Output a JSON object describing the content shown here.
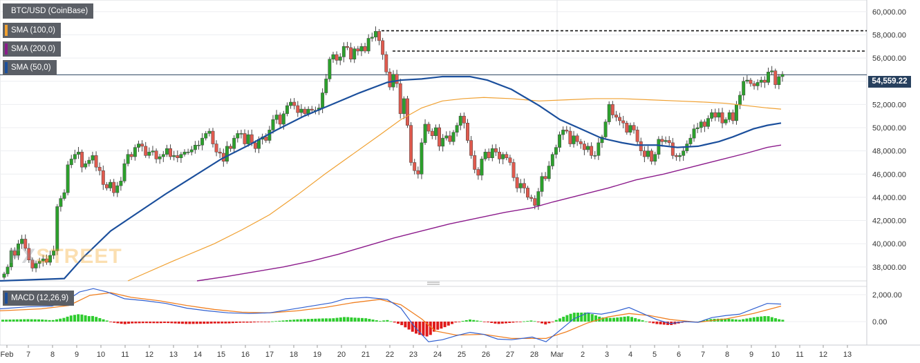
{
  "legend": [
    {
      "label": "BTC/USD (CoinBase)",
      "color": "#5b5f66"
    },
    {
      "label": "SMA (100,0)",
      "color": "#f0a030"
    },
    {
      "label": "SMA (200,0)",
      "color": "#8b1a8b"
    },
    {
      "label": "SMA (50,0)",
      "color": "#1b4f9c"
    }
  ],
  "macd_legend": {
    "label": "MACD (12,26,9)",
    "color": "#1b4f9c"
  },
  "current_price_label": "54,559.22",
  "watermark": {
    "part1": "FX",
    "part2": "STREET"
  },
  "colors": {
    "up": "#2ca02c",
    "down": "#e05a4e",
    "sma50": "#1b4f9c",
    "sma100": "#f0a030",
    "sma200": "#8b1a8b",
    "macd": "#2f5fd0",
    "signal": "#f07f20",
    "hist_pos": "#2ecc2e",
    "hist_neg": "#e01b1b",
    "price_line": "#27405e"
  },
  "chart_data": [
    {
      "type": "candlestick",
      "title": "BTC/USD (CoinBase)",
      "interval": "4h",
      "ylim": [
        36800,
        61000
      ],
      "y_ticks": [
        "38,000.00",
        "40,000.00",
        "42,000.00",
        "44,000.00",
        "46,000.00",
        "48,000.00",
        "50,000.00",
        "52,000.00",
        "54,000.00",
        "56,000.00",
        "58,000.00",
        "60,000.00"
      ],
      "x_ticks": [
        "Feb",
        "7",
        "8",
        "9",
        "10",
        "11",
        "12",
        "13",
        "14",
        "15",
        "16",
        "17",
        "18",
        "19",
        "20",
        "21",
        "22",
        "23",
        "24",
        "25",
        "26",
        "27",
        "28",
        "Mar",
        "2",
        "3",
        "4",
        "5",
        "6",
        "7",
        "8",
        "9",
        "10",
        "11",
        "12",
        "13"
      ],
      "current_price": 54559.22,
      "resistance_levels": [
        58350,
        56600
      ],
      "candles_close": [
        37400,
        38000,
        39400,
        39000,
        40000,
        40400,
        39600,
        38600,
        37900,
        38300,
        38500,
        38700,
        38400,
        39000,
        39400,
        43200,
        43900,
        44400,
        46800,
        47300,
        47700,
        47900,
        46600,
        46900,
        47200,
        47600,
        46600,
        46300,
        45100,
        44800,
        45300,
        44400,
        45000,
        45400,
        46900,
        47700,
        47500,
        48300,
        48600,
        48400,
        47600,
        47900,
        48000,
        47300,
        47500,
        47700,
        48200,
        47500,
        47600,
        47400,
        47700,
        47900,
        47900,
        48100,
        48500,
        48500,
        49100,
        49500,
        49700,
        48600,
        47900,
        47800,
        47100,
        48400,
        48200,
        49100,
        49500,
        49500,
        48600,
        49400,
        48700,
        48200,
        49000,
        49200,
        48900,
        49800,
        50700,
        51100,
        50300,
        51200,
        51900,
        52200,
        51900,
        51300,
        51600,
        51200,
        51600,
        51500,
        51500,
        51700,
        53000,
        54200,
        55900,
        56300,
        55800,
        56100,
        57000,
        56900,
        55900,
        56800,
        56600,
        57000,
        56600,
        57700,
        57800,
        58300,
        57500,
        56300,
        54800,
        53500,
        54600,
        53800,
        51200,
        52500,
        50200,
        47000,
        46300,
        46000,
        48700,
        50300,
        49700,
        49300,
        50000,
        48400,
        49100,
        49300,
        48800,
        49600,
        50200,
        51000,
        50400,
        48900,
        47600,
        46400,
        45900,
        47300,
        47900,
        47400,
        48200,
        47900,
        47300,
        47700,
        47400,
        47000,
        45700,
        44800,
        45200,
        44800,
        44000,
        43900,
        43300,
        44500,
        45800,
        45600,
        46700,
        47700,
        48300,
        49400,
        49800,
        49700,
        48600,
        49300,
        48800,
        48600,
        48100,
        48400,
        47600,
        47600,
        48700,
        49200,
        50500,
        52000,
        51100,
        50900,
        50600,
        50400,
        49600,
        50200,
        49800,
        48800,
        48000,
        47500,
        48000,
        47100,
        47700,
        49000,
        48800,
        48900,
        48700,
        47600,
        47500,
        47600,
        48000,
        48600,
        49100,
        49900,
        50000,
        50500,
        50100,
        50800,
        51300,
        50900,
        51300,
        50400,
        50700,
        51300,
        50600,
        52000,
        52800,
        54000,
        54100,
        53800,
        53600,
        53900,
        54100,
        53900,
        54800,
        54900,
        53700,
        54400,
        54600
      ],
      "sma50": [
        [
          0,
          36800
        ],
        [
          93,
          37000
        ],
        [
          120,
          38800
        ],
        [
          160,
          41100
        ],
        [
          200,
          42700
        ],
        [
          240,
          44300
        ],
        [
          280,
          45800
        ],
        [
          320,
          47300
        ],
        [
          360,
          48500
        ],
        [
          400,
          49800
        ],
        [
          440,
          51000
        ],
        [
          480,
          52000
        ],
        [
          520,
          53000
        ],
        [
          560,
          53900
        ],
        [
          580,
          54100
        ],
        [
          610,
          54200
        ],
        [
          640,
          54400
        ],
        [
          680,
          54400
        ],
        [
          705,
          54100
        ],
        [
          740,
          53300
        ],
        [
          780,
          51900
        ],
        [
          810,
          50700
        ],
        [
          840,
          49900
        ],
        [
          870,
          49100
        ],
        [
          900,
          48700
        ],
        [
          920,
          48500
        ],
        [
          950,
          48500
        ],
        [
          980,
          48300
        ],
        [
          1010,
          48400
        ],
        [
          1040,
          48800
        ],
        [
          1060,
          49200
        ],
        [
          1090,
          49900
        ],
        [
          1110,
          50200
        ],
        [
          1130,
          50400
        ]
      ],
      "sma100": [
        [
          185,
          36800
        ],
        [
          250,
          38500
        ],
        [
          310,
          40000
        ],
        [
          350,
          41200
        ],
        [
          390,
          42500
        ],
        [
          430,
          44200
        ],
        [
          470,
          46000
        ],
        [
          510,
          47700
        ],
        [
          550,
          49400
        ],
        [
          580,
          50700
        ],
        [
          610,
          51700
        ],
        [
          640,
          52300
        ],
        [
          670,
          52500
        ],
        [
          700,
          52600
        ],
        [
          740,
          52500
        ],
        [
          780,
          52300
        ],
        [
          820,
          52400
        ],
        [
          860,
          52500
        ],
        [
          900,
          52500
        ],
        [
          940,
          52400
        ],
        [
          980,
          52300
        ],
        [
          1020,
          52200
        ],
        [
          1050,
          52100
        ],
        [
          1080,
          51900
        ],
        [
          1110,
          51700
        ],
        [
          1130,
          51600
        ]
      ],
      "sma200": [
        [
          285,
          36800
        ],
        [
          330,
          37200
        ],
        [
          370,
          37600
        ],
        [
          410,
          38000
        ],
        [
          450,
          38500
        ],
        [
          490,
          39100
        ],
        [
          530,
          39800
        ],
        [
          570,
          40500
        ],
        [
          610,
          41100
        ],
        [
          650,
          41700
        ],
        [
          690,
          42200
        ],
        [
          730,
          42700
        ],
        [
          770,
          43100
        ],
        [
          800,
          43600
        ],
        [
          840,
          44200
        ],
        [
          880,
          44800
        ],
        [
          920,
          45500
        ],
        [
          960,
          46000
        ],
        [
          1000,
          46600
        ],
        [
          1040,
          47200
        ],
        [
          1080,
          47800
        ],
        [
          1110,
          48300
        ],
        [
          1130,
          48500
        ]
      ]
    },
    {
      "type": "line+bar",
      "title": "MACD (12,26,9)",
      "ylim": [
        -1700,
        2600
      ],
      "y_ticks": [
        "2,000.00",
        "0.00"
      ],
      "macd": [
        [
          0,
          950
        ],
        [
          40,
          1100
        ],
        [
          75,
          1150
        ],
        [
          95,
          1500
        ],
        [
          115,
          2200
        ],
        [
          135,
          2450
        ],
        [
          155,
          2200
        ],
        [
          180,
          1700
        ],
        [
          210,
          1550
        ],
        [
          240,
          1350
        ],
        [
          270,
          1000
        ],
        [
          300,
          800
        ],
        [
          330,
          650
        ],
        [
          360,
          600
        ],
        [
          390,
          650
        ],
        [
          420,
          900
        ],
        [
          450,
          1150
        ],
        [
          480,
          1400
        ],
        [
          500,
          1700
        ],
        [
          530,
          1800
        ],
        [
          560,
          1650
        ],
        [
          580,
          1000
        ],
        [
          600,
          -400
        ],
        [
          620,
          -1500
        ],
        [
          640,
          -1350
        ],
        [
          660,
          -1050
        ],
        [
          680,
          -800
        ],
        [
          700,
          -950
        ],
        [
          720,
          -1300
        ],
        [
          740,
          -1350
        ],
        [
          770,
          -1150
        ],
        [
          790,
          -1500
        ],
        [
          810,
          -650
        ],
        [
          830,
          200
        ],
        [
          850,
          650
        ],
        [
          870,
          550
        ],
        [
          890,
          750
        ],
        [
          910,
          1050
        ],
        [
          930,
          600
        ],
        [
          950,
          150
        ],
        [
          970,
          -150
        ],
        [
          990,
          0
        ],
        [
          1010,
          -50
        ],
        [
          1030,
          300
        ],
        [
          1050,
          450
        ],
        [
          1070,
          550
        ],
        [
          1090,
          950
        ],
        [
          1110,
          1350
        ],
        [
          1130,
          1300
        ]
      ],
      "signal": [
        [
          0,
          800
        ],
        [
          60,
          950
        ],
        [
          100,
          1200
        ],
        [
          130,
          1950
        ],
        [
          160,
          2150
        ],
        [
          190,
          1800
        ],
        [
          230,
          1550
        ],
        [
          270,
          1200
        ],
        [
          310,
          900
        ],
        [
          350,
          700
        ],
        [
          390,
          650
        ],
        [
          430,
          800
        ],
        [
          470,
          1050
        ],
        [
          510,
          1400
        ],
        [
          550,
          1650
        ],
        [
          580,
          1250
        ],
        [
          610,
          200
        ],
        [
          630,
          -700
        ],
        [
          660,
          -1000
        ],
        [
          700,
          -950
        ],
        [
          740,
          -1250
        ],
        [
          790,
          -1250
        ],
        [
          820,
          -750
        ],
        [
          850,
          -100
        ],
        [
          880,
          350
        ],
        [
          910,
          600
        ],
        [
          940,
          450
        ],
        [
          970,
          150
        ],
        [
          1010,
          -50
        ],
        [
          1050,
          200
        ],
        [
          1090,
          600
        ],
        [
          1130,
          1150
        ]
      ],
      "histogram_note": "positive/negative bars following MACD minus signal"
    }
  ]
}
